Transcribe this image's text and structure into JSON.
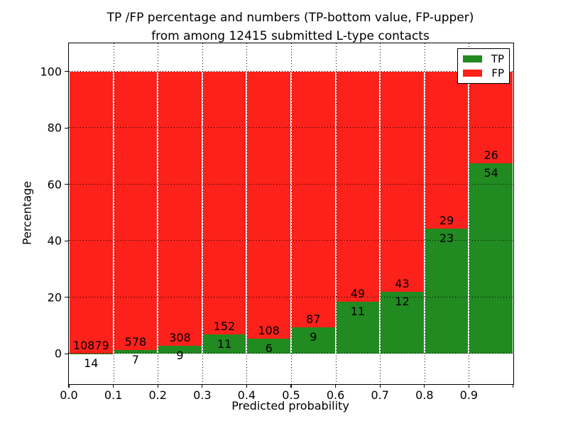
{
  "title": {
    "line1": "TP /FP percentage and numbers (TP-bottom value, FP-upper)",
    "line2": "from among 12415 submitted L-type contacts"
  },
  "axes": {
    "xlabel": "Predicted probability",
    "ylabel": "Percentage"
  },
  "legend": {
    "items": [
      {
        "label": "TP",
        "color": "#218a21"
      },
      {
        "label": "FP",
        "color": "#fc211a"
      }
    ]
  },
  "chart_data": {
    "type": "bar",
    "stacked": true,
    "normalized_to_percent": true,
    "title": "TP /FP percentage and numbers (TP-bottom value, FP-upper)\nfrom among 12415 submitted L-type contacts",
    "xlabel": "Predicted probability",
    "ylabel": "Percentage",
    "total_contacts": 12415,
    "bin_starts": [
      0.0,
      0.1,
      0.2,
      0.3,
      0.4,
      0.5,
      0.6,
      0.7,
      0.8,
      0.9
    ],
    "bin_width": 0.1,
    "series": [
      {
        "name": "TP",
        "color": "#218a21",
        "counts": [
          14,
          7,
          9,
          11,
          6,
          9,
          11,
          12,
          23,
          54
        ]
      },
      {
        "name": "FP",
        "color": "#fc211a",
        "counts": [
          10879,
          578,
          308,
          152,
          108,
          87,
          49,
          43,
          29,
          26
        ]
      }
    ],
    "tp_percent": [
      0.13,
      1.2,
      2.84,
      6.75,
      5.26,
      9.38,
      18.33,
      21.82,
      44.23,
      67.5
    ],
    "x_tick_labels": [
      "0.0",
      "0.1",
      "0.2",
      "0.3",
      "0.4",
      "0.5",
      "0.6",
      "0.7",
      "0.8",
      "0.9"
    ],
    "y_tick_labels": [
      "0",
      "20",
      "40",
      "60",
      "80",
      "100"
    ],
    "y_ticks": [
      0,
      20,
      40,
      60,
      80,
      100
    ],
    "xlim": [
      0.0,
      1.0
    ],
    "ylim": [
      -10.8,
      110
    ],
    "grid": "dotted",
    "legend_position": "upper right"
  }
}
